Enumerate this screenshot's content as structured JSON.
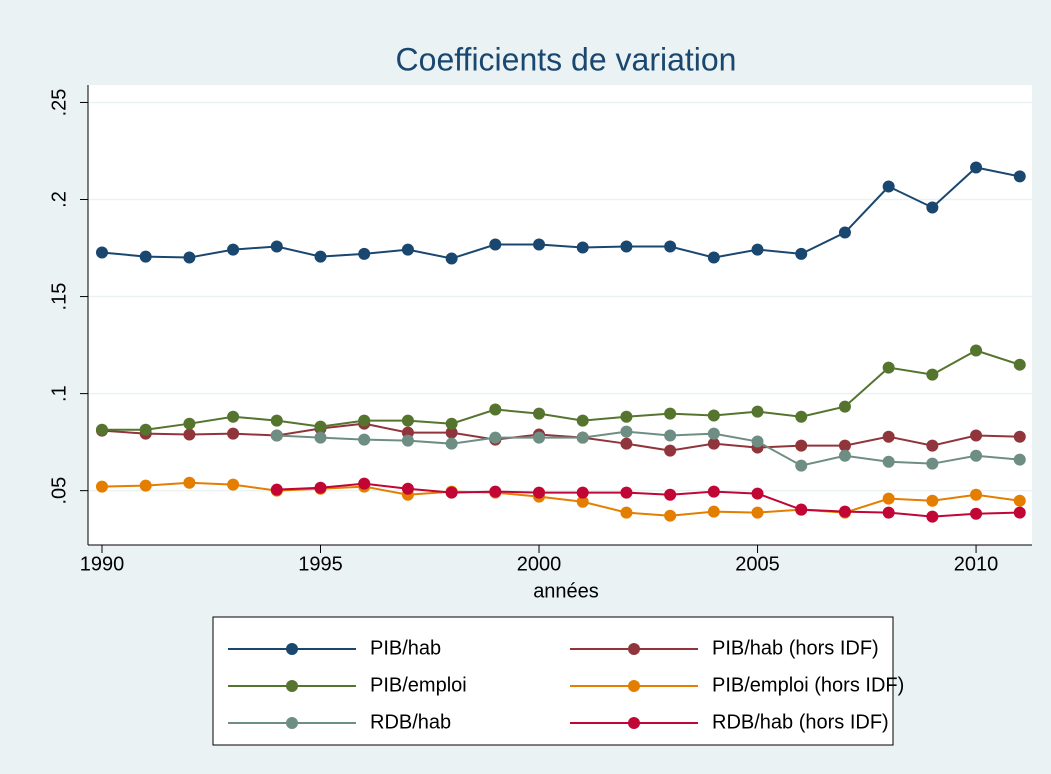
{
  "chart_data": {
    "type": "line",
    "title": "Coefficients de variation",
    "x_label": "années",
    "x": [
      1990,
      1991,
      1992,
      1993,
      1994,
      1995,
      1996,
      1997,
      1998,
      1999,
      2000,
      2001,
      2002,
      2003,
      2004,
      2005,
      2006,
      2007,
      2008,
      2009,
      2010,
      2011
    ],
    "xlim": [
      1989.68,
      2011.28
    ],
    "xticks": [
      1990,
      1995,
      2000,
      2005,
      2010
    ],
    "ylim": [
      0.022,
      0.259
    ],
    "yticks": [
      {
        "value": 0.05,
        "label": ".05"
      },
      {
        "value": 0.1,
        "label": ".1"
      },
      {
        "value": 0.15,
        "label": ".15"
      },
      {
        "value": 0.2,
        "label": ".2"
      },
      {
        "value": 0.25,
        "label": ".25"
      }
    ],
    "grid": true,
    "legend_position": "bottom",
    "series": [
      {
        "name": "PIB/hab",
        "color": "#1a476f",
        "values": [
          0.1727,
          0.1706,
          0.1701,
          0.1742,
          0.1758,
          0.1706,
          0.172,
          0.1742,
          0.1696,
          0.1768,
          0.1768,
          0.1753,
          0.1758,
          0.1758,
          0.1701,
          0.1742,
          0.172,
          0.183,
          0.2067,
          0.1959,
          0.2165,
          0.2119
        ]
      },
      {
        "name": "PIB/hab (hors IDF)",
        "color": "#90353b",
        "values": [
          0.0809,
          0.0794,
          0.0789,
          0.0794,
          0.0784,
          0.082,
          0.0845,
          0.0799,
          0.0799,
          0.0763,
          0.0789,
          0.0773,
          0.0742,
          0.0706,
          0.0742,
          0.0722,
          0.0732,
          0.0732,
          0.0778,
          0.0732,
          0.0784,
          0.0778
        ]
      },
      {
        "name": "PIB/emploi",
        "color": "#55752f",
        "values": [
          0.0814,
          0.0814,
          0.0845,
          0.0881,
          0.0861,
          0.083,
          0.0861,
          0.0861,
          0.0845,
          0.0918,
          0.0897,
          0.0861,
          0.0881,
          0.0897,
          0.0887,
          0.0907,
          0.0881,
          0.0933,
          0.1134,
          0.1098,
          0.1222,
          0.1149
        ]
      },
      {
        "name": "PIB/emploi (hors IDF)",
        "color": "#e37e00",
        "values": [
          0.0521,
          0.0526,
          0.0541,
          0.0531,
          0.05,
          0.051,
          0.0521,
          0.0479,
          0.0495,
          0.049,
          0.0469,
          0.0443,
          0.0387,
          0.0371,
          0.0392,
          0.0387,
          0.0402,
          0.0387,
          0.0459,
          0.0448,
          0.0479,
          0.0448
        ]
      },
      {
        "name": "RDB/hab",
        "color": "#6e8e84",
        "values": [
          null,
          null,
          null,
          null,
          0.0784,
          0.0773,
          0.0763,
          0.0758,
          0.0742,
          0.0773,
          0.0773,
          0.0773,
          0.0804,
          0.0784,
          0.0794,
          0.0753,
          0.0629,
          0.068,
          0.0649,
          0.0639,
          0.068,
          0.066
        ]
      },
      {
        "name": "RDB/hab (hors IDF)",
        "color": "#c10534",
        "values": [
          null,
          null,
          null,
          null,
          0.0505,
          0.0515,
          0.0536,
          0.051,
          0.049,
          0.0495,
          0.049,
          0.049,
          0.049,
          0.0479,
          0.0495,
          0.0485,
          0.0402,
          0.0392,
          0.0387,
          0.0366,
          0.0381,
          0.0387
        ]
      }
    ]
  }
}
